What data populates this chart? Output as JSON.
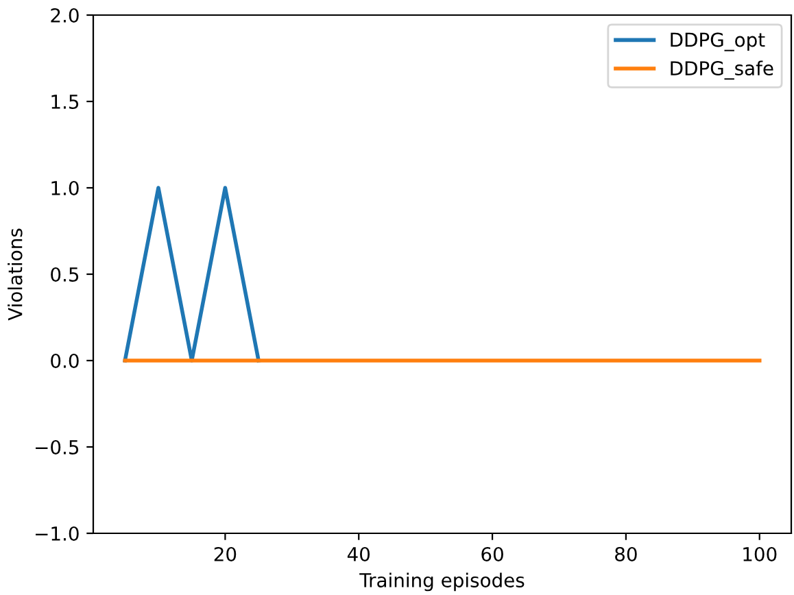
{
  "chart_data": {
    "type": "line",
    "xlabel": "Training episodes",
    "ylabel": "Violations",
    "x": [
      5,
      10,
      15,
      20,
      25,
      30,
      35,
      40,
      45,
      50,
      55,
      60,
      65,
      70,
      75,
      80,
      85,
      90,
      95,
      100
    ],
    "series": [
      {
        "name": "DDPG_opt",
        "color": "#1f77b4",
        "values": [
          0,
          1,
          0,
          1,
          0,
          null,
          null,
          null,
          null,
          null,
          null,
          null,
          null,
          null,
          null,
          null,
          null,
          null,
          null,
          null
        ]
      },
      {
        "name": "DDPG_safe",
        "color": "#ff7f0e",
        "values": [
          0,
          0,
          0,
          0,
          0,
          0,
          0,
          0,
          0,
          0,
          0,
          0,
          0,
          0,
          0,
          0,
          0,
          0,
          0,
          0
        ]
      }
    ],
    "xlim": [
      0.25,
      104.75
    ],
    "xticks": [
      20,
      40,
      60,
      80,
      100
    ],
    "ylim": [
      -1.0,
      2.0
    ],
    "yticks": [
      {
        "value": -1.0,
        "label": "−1.0"
      },
      {
        "value": -0.5,
        "label": "−0.5"
      },
      {
        "value": 0.0,
        "label": "0.0"
      },
      {
        "value": 0.5,
        "label": "0.5"
      },
      {
        "value": 1.0,
        "label": "1.0"
      },
      {
        "value": 1.5,
        "label": "1.5"
      },
      {
        "value": 2.0,
        "label": "2.0"
      }
    ],
    "legend": "top right",
    "grid": false
  }
}
